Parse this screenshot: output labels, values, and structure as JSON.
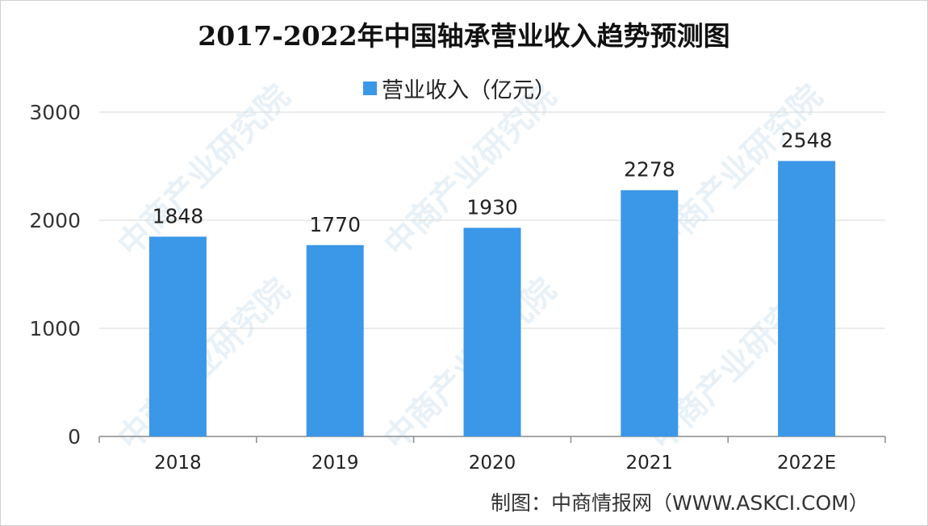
{
  "chart_data": {
    "type": "bar",
    "title": "2017-2022年中国轴承营业收入趋势预测图",
    "categories": [
      "2018",
      "2019",
      "2020",
      "2021",
      "2022E"
    ],
    "series": [
      {
        "name": "营业收入（亿元）",
        "values": [
          1848,
          1770,
          1930,
          2278,
          2548
        ]
      }
    ],
    "data_labels": [
      "1848",
      "1770",
      "1930",
      "2278",
      "2548"
    ],
    "y_ticks": [
      "0",
      "1000",
      "2000",
      "3000"
    ],
    "ylim": [
      0,
      3000
    ],
    "grid": true,
    "legend_position": "top",
    "bar_color": "#3b97e8"
  },
  "footer": {
    "source": "制图：中商情报网（WWW.ASKCI.COM）"
  },
  "watermark": {
    "text": "中商产业研究院"
  }
}
